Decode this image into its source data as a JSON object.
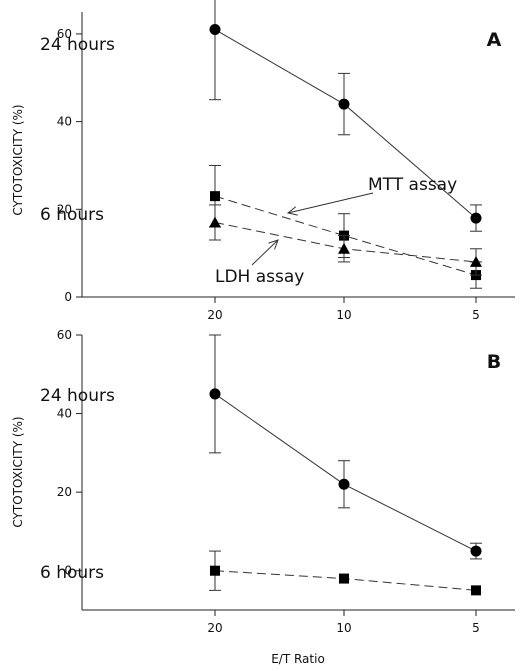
{
  "chart_data": [
    {
      "type": "line",
      "panel_label": "A",
      "ylabel": "CYTOTOXICITY (%)",
      "xlabel": "",
      "categories": [
        "20",
        "10",
        "5"
      ],
      "ylim": [
        0,
        65
      ],
      "yticks": [
        0,
        20,
        40,
        60
      ],
      "series": [
        {
          "name": "24 hours",
          "marker": "circle",
          "line": "solid",
          "values": [
            61,
            44,
            18
          ],
          "errors": [
            16,
            7,
            3
          ]
        },
        {
          "name": "MTT assay",
          "marker": "square",
          "line": "dashed",
          "values": [
            23,
            14,
            5
          ],
          "errors": [
            7,
            5,
            3
          ]
        },
        {
          "name": "LDH assay",
          "marker": "triangle",
          "line": "dashed",
          "values": [
            17,
            11,
            8
          ],
          "errors": [
            4,
            3,
            3
          ]
        }
      ],
      "annotations": [
        {
          "text": "24 hours"
        },
        {
          "text": "6 hours"
        },
        {
          "text": "MTT assay"
        },
        {
          "text": "LDH assay"
        }
      ]
    },
    {
      "type": "line",
      "panel_label": "B",
      "ylabel": "CYTOTOXICITY (%)",
      "xlabel": "E/T Ratio",
      "categories": [
        "20",
        "10",
        "5"
      ],
      "ylim": [
        -10,
        60
      ],
      "yticks": [
        0,
        20,
        40,
        60
      ],
      "series": [
        {
          "name": "24 hours",
          "marker": "circle",
          "line": "solid",
          "values": [
            45,
            22,
            5
          ],
          "errors": [
            15,
            6,
            2
          ]
        },
        {
          "name": "6 hours",
          "marker": "square",
          "line": "dashed",
          "values": [
            0,
            -2,
            -5
          ],
          "errors": [
            5,
            0,
            0
          ]
        }
      ],
      "annotations": [
        {
          "text": "24 hours"
        },
        {
          "text": "6 hours"
        }
      ]
    }
  ]
}
